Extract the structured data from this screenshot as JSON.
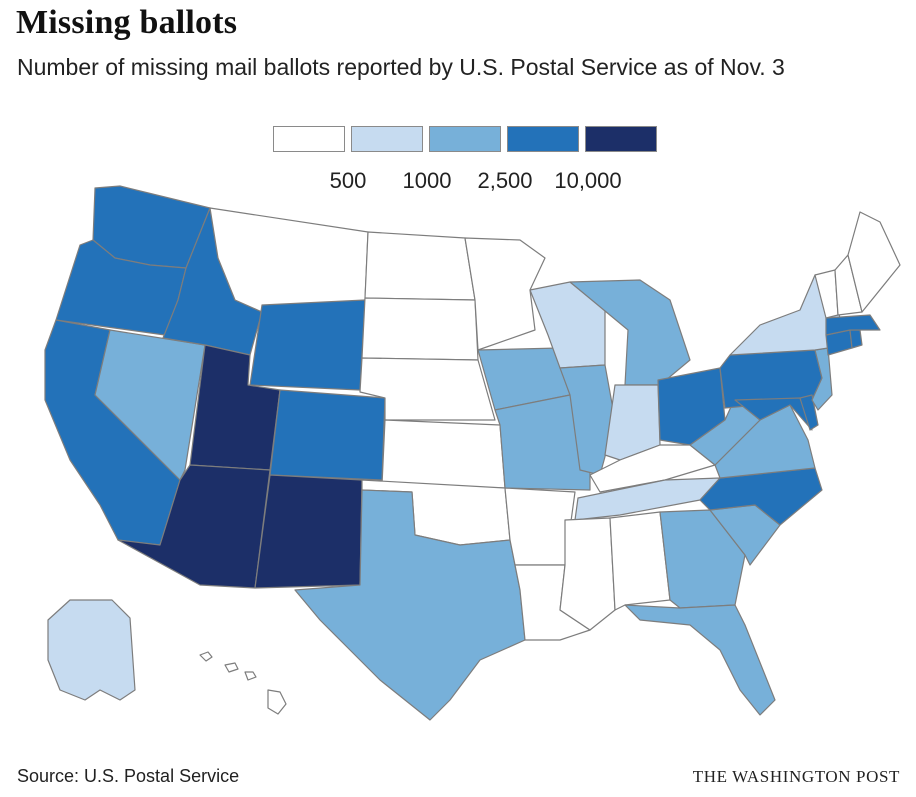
{
  "title": "Missing ballots",
  "subtitle": "Number of missing mail ballots reported by U.S. Postal Service as of Nov. 3",
  "legend": {
    "bins": [
      {
        "color": "#ffffff"
      },
      {
        "color": "#c6dbf0"
      },
      {
        "color": "#77b0d9"
      },
      {
        "color": "#2372b9"
      },
      {
        "color": "#1c2f68"
      }
    ],
    "thresholds": [
      "500",
      "1000",
      "2,500",
      "10,000"
    ]
  },
  "colors": {
    "bin0": "#ffffff",
    "bin1": "#c6dbf0",
    "bin2": "#77b0d9",
    "bin3": "#2372b9",
    "bin4": "#1c2f68",
    "border": "#7d7d7d"
  },
  "states": {
    "WA": 3,
    "OR": 3,
    "CA": 3,
    "ID": 3,
    "NV": 2,
    "UT": 4,
    "AZ": 4,
    "MT": 0,
    "WY": 3,
    "CO": 3,
    "NM": 4,
    "ND": 0,
    "SD": 0,
    "NE": 0,
    "KS": 0,
    "OK": 0,
    "TX": 2,
    "MN": 0,
    "IA": 2,
    "MO": 2,
    "AR": 0,
    "LA": 0,
    "WI": 1,
    "IL": 2,
    "MI": 2,
    "IN": 1,
    "OH": 3,
    "KY": 0,
    "TN": 1,
    "MS": 0,
    "AL": 0,
    "GA": 2,
    "FL": 2,
    "SC": 2,
    "NC": 3,
    "VA": 2,
    "WV": 2,
    "MD": 3,
    "DE": 3,
    "PA": 3,
    "NJ": 2,
    "NY": 1,
    "CT": 3,
    "RI": 3,
    "MA": 3,
    "VT": 0,
    "NH": 0,
    "ME": 0,
    "AK": 1,
    "HI": 0
  },
  "source": "Source: U.S. Postal Service",
  "credit": "THE WASHINGTON POST"
}
